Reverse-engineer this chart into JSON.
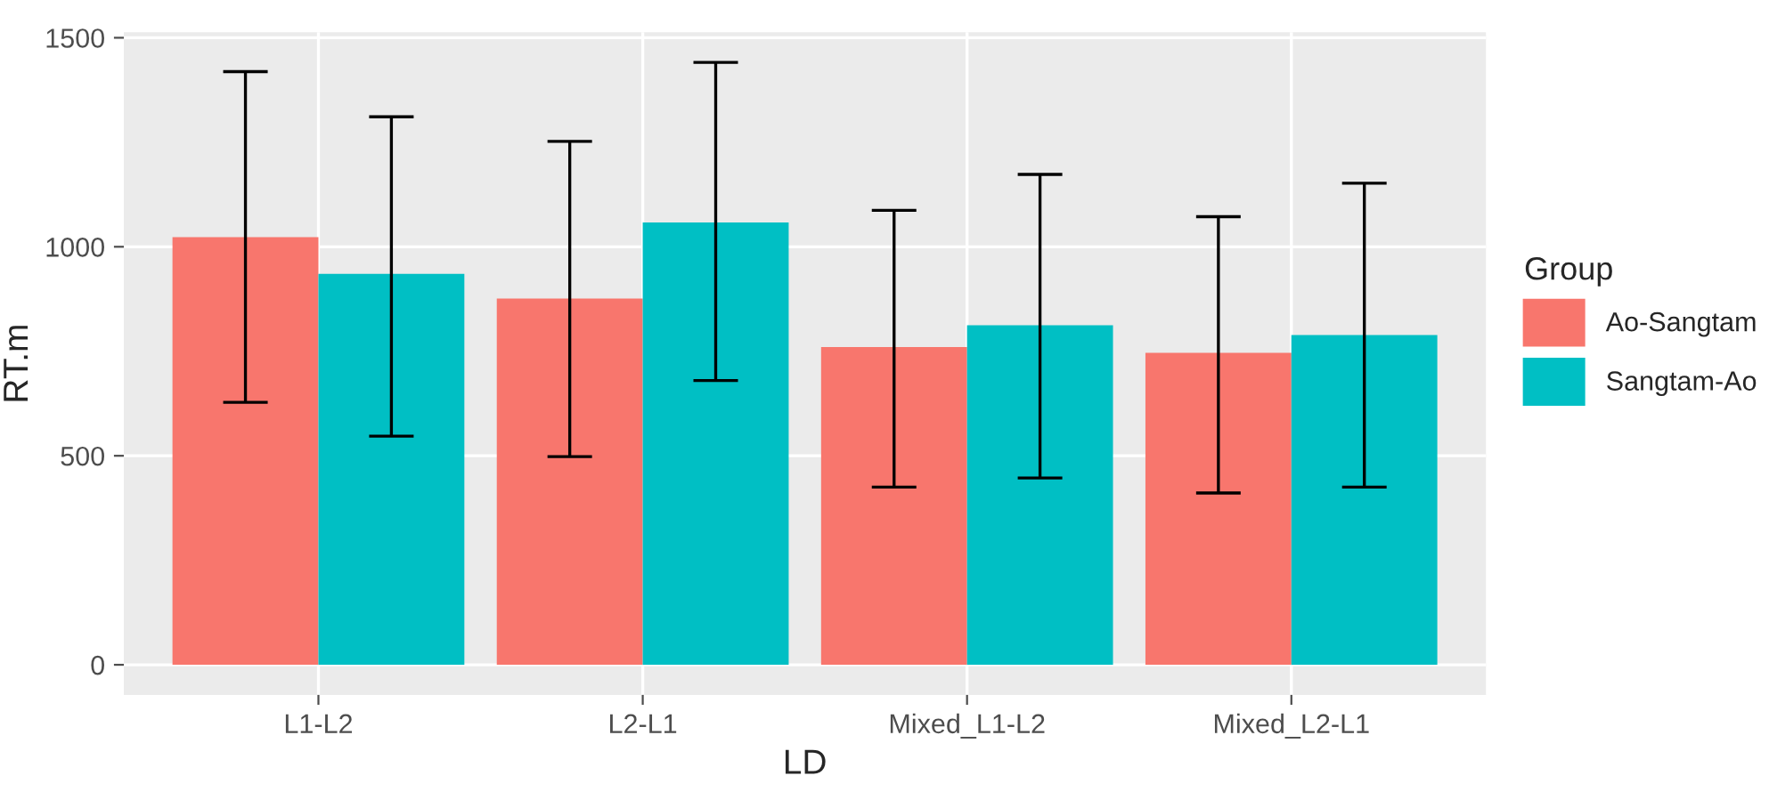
{
  "chart_data": {
    "type": "bar",
    "xlabel": "LD",
    "ylabel": "RT.m",
    "legend_title": "Group",
    "categories": [
      "L1-L2",
      "L2-L1",
      "Mixed_L1-L2",
      "Mixed_L2-L1"
    ],
    "series": [
      {
        "name": "Ao-Sangtam",
        "color": "#f8766d",
        "values": [
          1023,
          876,
          760,
          746
        ],
        "errors": [
          [
            628,
            1419
          ],
          [
            498,
            1252
          ],
          [
            425,
            1087
          ],
          [
            411,
            1072
          ]
        ]
      },
      {
        "name": "Sangtam-Ao",
        "color": "#00bfc4",
        "values": [
          935,
          1058,
          812,
          789
        ],
        "errors": [
          [
            547,
            1311
          ],
          [
            680,
            1441
          ],
          [
            447,
            1173
          ],
          [
            425,
            1152
          ]
        ]
      }
    ],
    "ylim": [
      -72,
      1513
    ],
    "yticks": [
      0,
      500,
      1000,
      1500
    ],
    "grid": true,
    "legend": "right"
  }
}
